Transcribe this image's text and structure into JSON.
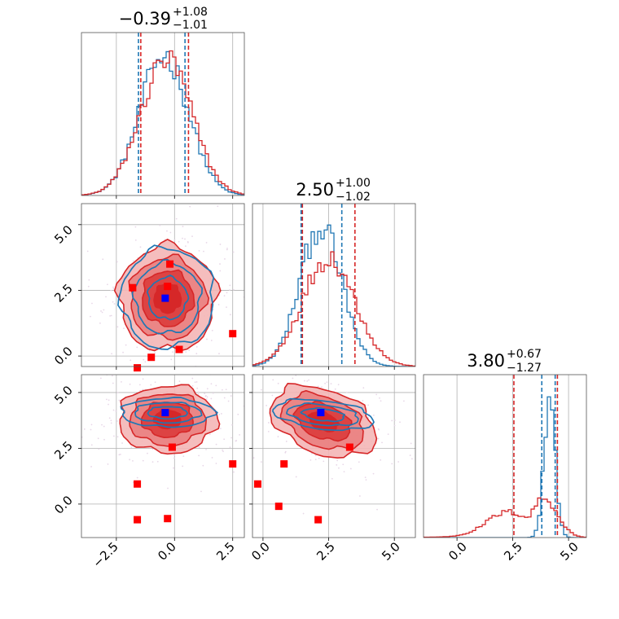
{
  "chart_data": {
    "type": "corner",
    "parameters": 3,
    "colors": {
      "primary": "#d62728",
      "secondary": "#1f77b4",
      "truth": "#0000ff",
      "markers": "#ff0000",
      "scatter": "#e8d8e8",
      "grid": "#b0b0b0"
    },
    "titles": [
      {
        "median": "−0.39",
        "plus": "+1.08",
        "minus": "−1.01"
      },
      {
        "median": "2.50",
        "plus": "+1.00",
        "minus": "−1.02"
      },
      {
        "median": "3.80",
        "plus": "+0.67",
        "minus": "−1.27"
      }
    ],
    "x_ticks": [
      [
        "−2.5",
        "0.0",
        "2.5"
      ],
      [
        "0.0",
        "2.5",
        "5.0"
      ],
      [
        "0.0",
        "2.5",
        "5.0"
      ]
    ],
    "y_ticks": [
      [
        "0.0",
        "2.5",
        "5.0"
      ],
      [
        "0.0",
        "2.5",
        "5.0"
      ]
    ],
    "ranges": [
      [
        -4.0,
        3.0
      ],
      [
        -0.4,
        5.8
      ],
      [
        -1.5,
        5.8
      ]
    ],
    "quantile_lines": [
      {
        "secondary": [
          -1.55,
          0.45
        ],
        "primary": [
          -1.45,
          0.6
        ]
      },
      {
        "secondary": [
          1.45,
          3.0
        ],
        "primary": [
          1.5,
          3.5
        ]
      },
      {
        "secondary": [
          3.8,
          4.4
        ],
        "primary": [
          2.55,
          4.5
        ]
      }
    ],
    "truth_points": [
      {
        "panel": "p1_vs_p0",
        "x": -0.4,
        "y": 2.2
      },
      {
        "panel": "p2_vs_p0",
        "x": -0.4,
        "y": 4.1
      },
      {
        "panel": "p2_vs_p1",
        "x": 2.2,
        "y": 4.1
      }
    ],
    "marker_points": [
      {
        "panel": "p1_vs_p0",
        "points": [
          [
            -0.3,
            2.65
          ],
          [
            -1.8,
            2.6
          ],
          [
            -0.2,
            3.5
          ],
          [
            2.5,
            0.85
          ],
          [
            -1.0,
            -0.05
          ],
          [
            0.2,
            0.25
          ],
          [
            -1.6,
            -0.45
          ]
        ]
      },
      {
        "panel": "p2_vs_p0",
        "points": [
          [
            -1.6,
            0.9
          ],
          [
            -1.6,
            -0.7
          ],
          [
            -0.3,
            -0.65
          ],
          [
            2.5,
            1.8
          ],
          [
            -0.1,
            2.55
          ]
        ]
      },
      {
        "panel": "p2_vs_p1",
        "points": [
          [
            -0.2,
            0.9
          ],
          [
            0.6,
            -0.1
          ],
          [
            0.8,
            1.8
          ],
          [
            2.1,
            -0.7
          ],
          [
            3.3,
            2.55
          ]
        ]
      }
    ],
    "grid": true
  }
}
